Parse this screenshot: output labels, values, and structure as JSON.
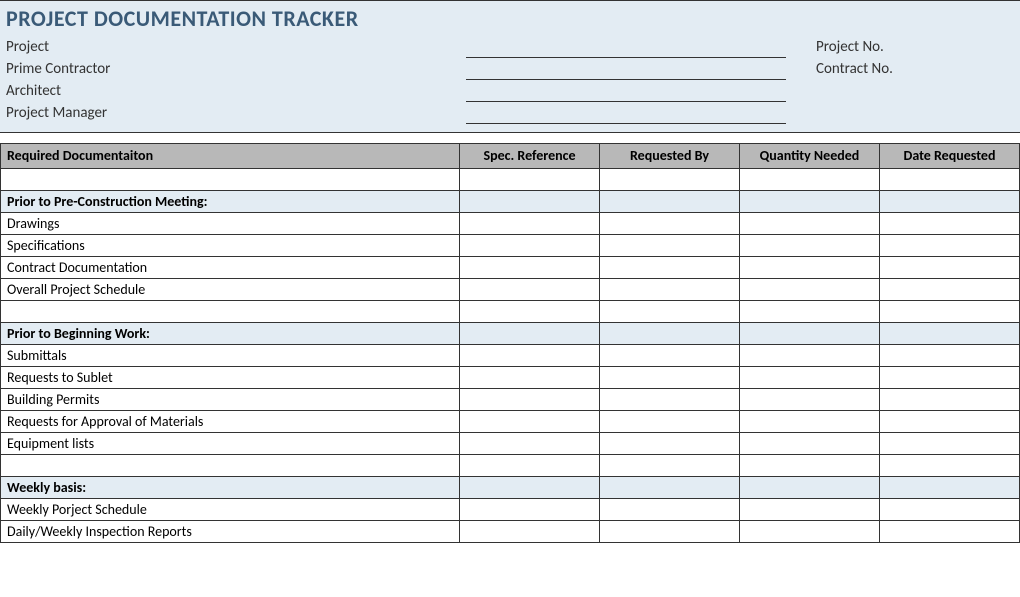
{
  "colors": {
    "header_bg": "#e3ecf3",
    "section_bg": "#e3ecf3",
    "column_header_bg": "#b8b8b8",
    "title_color": "#3a5a77",
    "border_color": "#333333"
  },
  "title": "PROJECT DOCUMENTATION TRACKER",
  "header_fields_left": [
    "Project",
    "Prime Contractor",
    "Architect",
    "Project Manager"
  ],
  "header_fields_right": [
    "Project No.",
    "Contract No."
  ],
  "columns": [
    "Required Documentaiton",
    "Spec. Reference",
    "Requested By",
    "Quantity Needed",
    "Date Requested"
  ],
  "sections": [
    {
      "heading": "Prior to Pre-Construction Meeting:",
      "rows": [
        "Drawings",
        "Specifications",
        "Contract Documentation",
        "Overall Project Schedule"
      ]
    },
    {
      "heading": "Prior to Beginning Work:",
      "rows": [
        "Submittals",
        "Requests to Sublet",
        "Building Permits",
        "Requests for Approval of Materials",
        "Equipment lists"
      ]
    },
    {
      "heading": "Weekly basis:",
      "rows": [
        "Weekly Porject Schedule",
        "Daily/Weekly Inspection Reports"
      ]
    }
  ]
}
